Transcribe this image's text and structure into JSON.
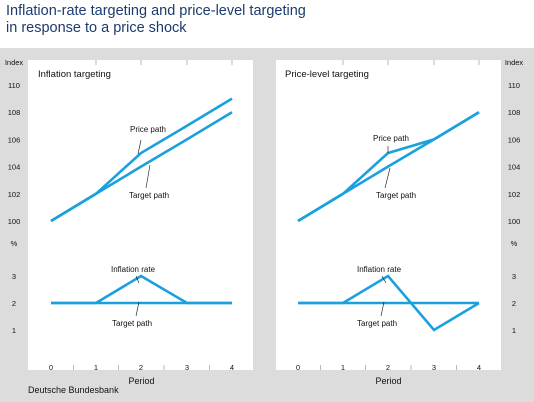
{
  "title_lines": [
    "Inflation-rate targeting and price-level targeting",
    "in response to a price shock"
  ],
  "source": "Deutsche Bundesbank",
  "unit_index": "Index",
  "unit_percent": "%",
  "colors": {
    "background": "#dcdcdc",
    "panel": "#ffffff",
    "line": "#1aa0dc",
    "title": "#1c3b6e"
  },
  "chart_data": [
    {
      "type": "line",
      "title": "Inflation targeting",
      "xlabel": "Period",
      "x": [
        0,
        1,
        2,
        3,
        4
      ],
      "top": {
        "ylabel": "Index",
        "ylim": [
          100,
          110
        ],
        "yticks": [
          100,
          102,
          104,
          106,
          108,
          110
        ],
        "series": [
          {
            "name": "Price path",
            "values": [
              100,
              102,
              105,
              107,
              109
            ]
          },
          {
            "name": "Target path",
            "values": [
              100,
              102,
              104,
              106,
              108
            ]
          }
        ]
      },
      "bottom": {
        "ylabel": "%",
        "ylim": [
          1,
          3
        ],
        "yticks": [
          1,
          2,
          3
        ],
        "series": [
          {
            "name": "Inflation rate",
            "values": [
              2,
              2,
              3,
              2,
              2
            ]
          },
          {
            "name": "Target path",
            "values": [
              2,
              2,
              2,
              2,
              2
            ]
          }
        ]
      }
    },
    {
      "type": "line",
      "title": "Price-level targeting",
      "xlabel": "Period",
      "x": [
        0,
        1,
        2,
        3,
        4
      ],
      "top": {
        "ylabel": "Index",
        "ylim": [
          100,
          110
        ],
        "yticks": [
          100,
          102,
          104,
          106,
          108,
          110
        ],
        "series": [
          {
            "name": "Price path",
            "values": [
              100,
              102,
              105,
              106,
              108
            ]
          },
          {
            "name": "Target path",
            "values": [
              100,
              102,
              104,
              106,
              108
            ]
          }
        ]
      },
      "bottom": {
        "ylabel": "%",
        "ylim": [
          1,
          3
        ],
        "yticks": [
          1,
          2,
          3
        ],
        "series": [
          {
            "name": "Inflation rate",
            "values": [
              2,
              2,
              3,
              1,
              2
            ]
          },
          {
            "name": "Target path",
            "values": [
              2,
              2,
              2,
              2,
              2
            ]
          }
        ]
      }
    }
  ]
}
